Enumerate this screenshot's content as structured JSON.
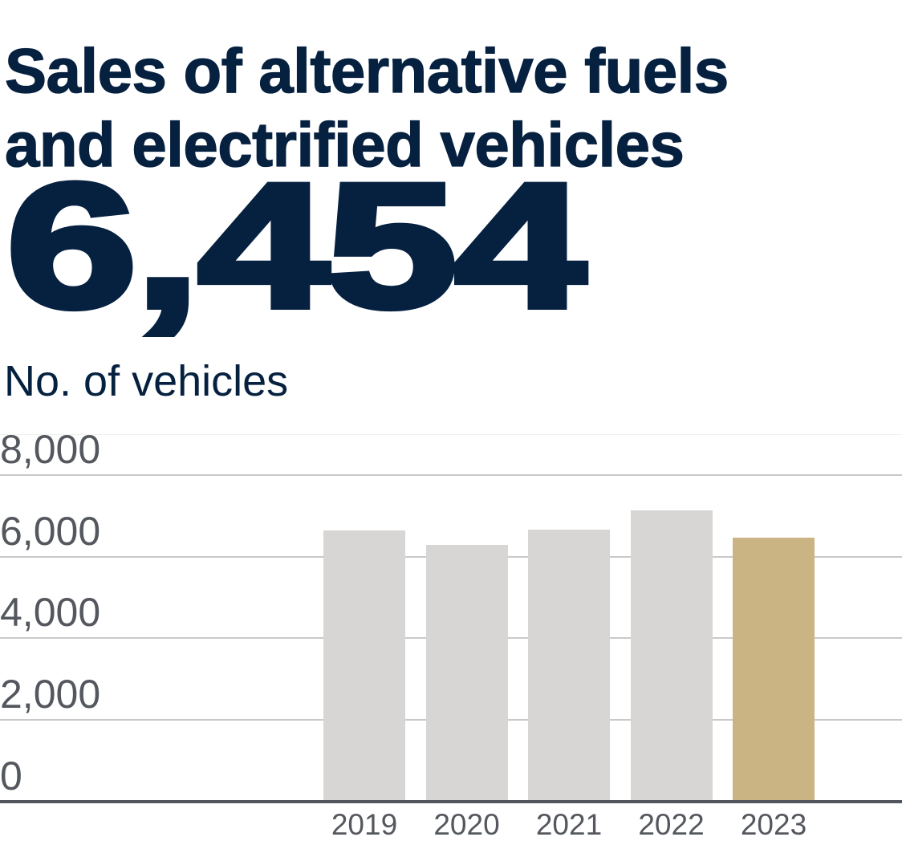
{
  "header": {
    "title_line1": "Sales of alternative fuels",
    "title_line2": "and electrified vehicles",
    "headline_value": "6,454",
    "headline_label": "No. of vehicles"
  },
  "colors": {
    "navy": "#062140",
    "bar_default": "#D7D6D4",
    "bar_highlight": "#CBB483",
    "axis_text": "#54585E",
    "gridline": "#C9C9C9",
    "axis_line": "#51565C",
    "plot_top_border": "#F0F0F0"
  },
  "chart_data": {
    "type": "bar",
    "title": "Sales of alternative fuels and electrified vehicles",
    "headline_value": 6454,
    "ylabel": "No. of vehicles",
    "xlabel": "",
    "categories": [
      "2019",
      "2020",
      "2021",
      "2022",
      "2023"
    ],
    "values": [
      6630,
      6260,
      6650,
      7120,
      6454
    ],
    "highlight_index": 4,
    "ylim": [
      0,
      9000
    ],
    "yticks": [
      0,
      2000,
      4000,
      6000,
      8000
    ],
    "ytick_labels": [
      "0",
      "2,000",
      "4,000",
      "6,000",
      "8,000"
    ],
    "grid": true,
    "legend": false
  }
}
